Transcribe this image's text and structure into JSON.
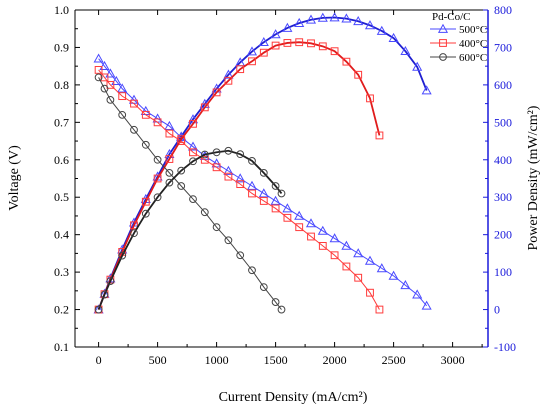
{
  "chart_data": {
    "type": "line",
    "title": "",
    "xlabel": "Current Density (mA/cm²)",
    "ylabel_left": "Voltage (V)",
    "ylabel_right": "Power Density (mW/cm²)",
    "xlim": [
      -200,
      3300
    ],
    "ylim_left": [
      0.1,
      1.0
    ],
    "ylim_right": [
      -100,
      800
    ],
    "xticks": [
      "0",
      "500",
      "1000",
      "1500",
      "2000",
      "2500",
      "3000"
    ],
    "yticks_left": [
      "0.1",
      "0.2",
      "0.3",
      "0.4",
      "0.5",
      "0.6",
      "0.7",
      "0.8",
      "0.9",
      "1.0"
    ],
    "yticks_right": [
      "-100",
      "0",
      "100",
      "200",
      "300",
      "400",
      "500",
      "600",
      "700",
      "800"
    ],
    "grid": false,
    "legend": {
      "title": "Pd-Co/C",
      "position": "top-right"
    },
    "colors": {
      "500C": "#4a4aff",
      "400C": "#ff3b3b",
      "600C": "#444444",
      "power_500C": "#1f1fd0",
      "power_400C": "#e01c1c",
      "power_600C": "#222222",
      "right_axis": "#1a1adb"
    },
    "series": [
      {
        "name": "500°C",
        "color": "#4a4aff",
        "marker": "triangle",
        "voltage": {
          "x": [
            0,
            50,
            100,
            150,
            200,
            300,
            400,
            500,
            600,
            700,
            800,
            900,
            1000,
            1100,
            1200,
            1300,
            1400,
            1500,
            1600,
            1700,
            1800,
            1900,
            2000,
            2100,
            2200,
            2300,
            2400,
            2500,
            2600,
            2700,
            2780
          ],
          "y": [
            0.87,
            0.85,
            0.83,
            0.81,
            0.79,
            0.76,
            0.73,
            0.71,
            0.69,
            0.66,
            0.635,
            0.61,
            0.59,
            0.57,
            0.55,
            0.53,
            0.51,
            0.49,
            0.47,
            0.45,
            0.43,
            0.41,
            0.39,
            0.37,
            0.35,
            0.33,
            0.31,
            0.29,
            0.265,
            0.24,
            0.21
          ]
        },
        "power": {
          "x": [
            0,
            50,
            100,
            200,
            300,
            400,
            500,
            600,
            700,
            800,
            900,
            1000,
            1100,
            1200,
            1300,
            1400,
            1500,
            1600,
            1700,
            1800,
            1900,
            2000,
            2100,
            2200,
            2300,
            2400,
            2500,
            2600,
            2700,
            2780
          ],
          "y": [
            0,
            42,
            83,
            160,
            232,
            295,
            355,
            415,
            462,
            508,
            549,
            590,
            627,
            660,
            689,
            714,
            735,
            752,
            765,
            774,
            779,
            780,
            777,
            770,
            759,
            744,
            725,
            690,
            648,
            585
          ]
        }
      },
      {
        "name": "400°C",
        "color": "#ff3b3b",
        "marker": "square",
        "voltage": {
          "x": [
            0,
            50,
            100,
            200,
            300,
            400,
            500,
            600,
            700,
            800,
            900,
            1000,
            1100,
            1200,
            1300,
            1400,
            1500,
            1600,
            1700,
            1800,
            1900,
            2000,
            2100,
            2200,
            2300,
            2380
          ],
          "y": [
            0.84,
            0.82,
            0.8,
            0.77,
            0.75,
            0.72,
            0.7,
            0.67,
            0.65,
            0.62,
            0.6,
            0.58,
            0.555,
            0.535,
            0.51,
            0.49,
            0.47,
            0.445,
            0.42,
            0.395,
            0.37,
            0.345,
            0.315,
            0.285,
            0.245,
            0.2
          ]
        },
        "power": {
          "x": [
            0,
            50,
            100,
            200,
            300,
            400,
            500,
            600,
            700,
            800,
            900,
            1000,
            1100,
            1200,
            1300,
            1400,
            1500,
            1600,
            1700,
            1800,
            1900,
            2000,
            2100,
            2200,
            2300,
            2380
          ],
          "y": [
            0,
            41,
            80,
            154,
            225,
            288,
            350,
            402,
            455,
            496,
            540,
            580,
            611,
            642,
            663,
            686,
            705,
            712,
            714,
            711,
            703,
            690,
            662,
            627,
            564,
            465
          ]
        }
      },
      {
        "name": "600°C",
        "color": "#444444",
        "marker": "circle",
        "voltage": {
          "x": [
            0,
            50,
            100,
            200,
            300,
            400,
            500,
            600,
            700,
            800,
            900,
            1000,
            1100,
            1200,
            1300,
            1400,
            1500,
            1550
          ],
          "y": [
            0.82,
            0.79,
            0.76,
            0.72,
            0.68,
            0.64,
            0.6,
            0.565,
            0.53,
            0.495,
            0.46,
            0.42,
            0.385,
            0.345,
            0.305,
            0.26,
            0.22,
            0.2
          ]
        },
        "power": {
          "x": [
            0,
            50,
            100,
            200,
            300,
            400,
            500,
            600,
            700,
            800,
            900,
            1000,
            1100,
            1200,
            1300,
            1400,
            1500,
            1550
          ],
          "y": [
            0,
            40,
            76,
            144,
            204,
            256,
            300,
            339,
            371,
            396,
            414,
            420,
            424,
            415,
            397,
            365,
            330,
            310
          ]
        }
      }
    ]
  }
}
